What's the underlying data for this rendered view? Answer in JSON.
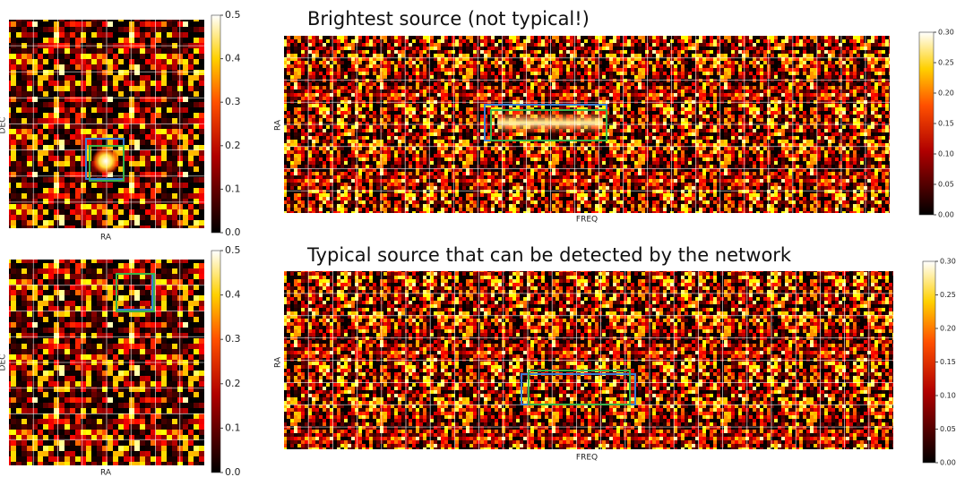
{
  "chart_data": [
    {
      "type": "heatmap",
      "xlabel": "RA",
      "ylabel": "DEC",
      "clim": [
        0,
        0.5
      ],
      "cticks": [
        {
          "value": 0,
          "label": "0.0"
        },
        0.1,
        0.2,
        0.3,
        0.4,
        0.5
      ]
    },
    {
      "type": "heatmap",
      "xlabel": "RA",
      "ylabel": "DEC",
      "clim": [
        0,
        0.5
      ],
      "cticks": [
        {
          "value": 0,
          "label": "0.0"
        },
        0.1,
        0.2,
        0.3,
        0.4,
        0.5
      ]
    },
    {
      "type": "heatmap",
      "title": "Brightest source (not typical!)",
      "xlabel": "FREQ",
      "ylabel": "RA",
      "clim": [
        0,
        0.3
      ],
      "cticks": [
        {
          "value": 0,
          "label": "0.00"
        },
        0.05,
        {
          "value": 0.1,
          "label": "0.10"
        },
        0.15,
        {
          "value": 0.2,
          "label": "0.20"
        },
        0.25,
        {
          "value": 0.3,
          "label": "0.30"
        }
      ]
    },
    {
      "type": "heatmap",
      "title": "Typical source that can be detected by the network",
      "xlabel": "FREQ",
      "ylabel": "RA",
      "clim": [
        0,
        0.3
      ],
      "cticks": [
        {
          "value": 0,
          "label": "0.00"
        },
        0.05,
        {
          "value": 0.1,
          "label": "0.10"
        },
        0.15,
        {
          "value": 0.2,
          "label": "0.20"
        },
        0.25,
        {
          "value": 0.3,
          "label": "0.30"
        }
      ]
    }
  ]
}
